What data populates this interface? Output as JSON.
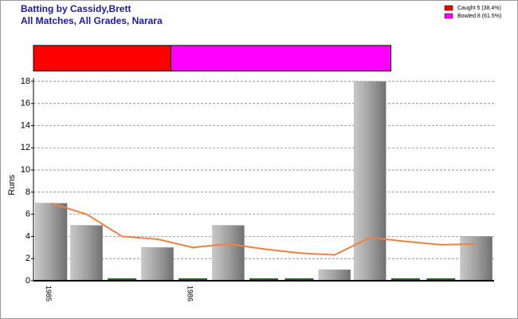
{
  "chart_data": [
    {
      "type": "stacked-bar",
      "xlim": [
        0,
        100
      ],
      "series": [
        {
          "name": "Caught 5 (38.4%)",
          "color": "#ff0000",
          "values": [
            38.4
          ]
        },
        {
          "name": "Bowled 8 (61.5%)",
          "color": "#ff00ff",
          "values": [
            61.5
          ]
        }
      ]
    },
    {
      "type": "bar",
      "title": "Batting by Cassidy,Brett",
      "subtitle": "All Matches, All Grades, Narara",
      "y_label": "Runs",
      "categories": [
        "1985",
        null,
        null,
        null,
        "1986",
        null,
        null,
        null,
        null,
        null,
        null,
        null,
        null
      ],
      "series": [
        {
          "type": "bar",
          "color": "#a8a8a8",
          "zero_color": "#1e6b1e",
          "values": [
            7,
            5,
            0,
            3,
            0,
            5,
            0,
            0,
            1,
            18,
            0,
            0,
            4
          ]
        },
        {
          "type": "line",
          "color": "#f08040",
          "values": [
            7,
            6,
            4,
            3.75,
            3,
            3.33,
            2.86,
            2.5,
            2.33,
            3.9,
            3.55,
            3.25,
            3.31
          ]
        }
      ],
      "ylim": [
        0,
        18
      ],
      "yticks": [
        0,
        2,
        4,
        6,
        8,
        10,
        12,
        14,
        16,
        18
      ],
      "grid": true
    }
  ]
}
